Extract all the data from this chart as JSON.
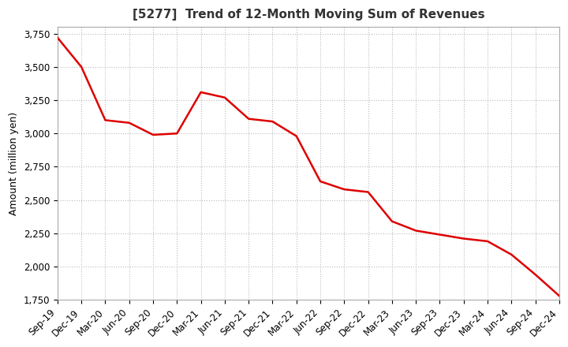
{
  "title": "[5277]  Trend of 12-Month Moving Sum of Revenues",
  "ylabel": "Amount (million yen)",
  "background_color": "#ffffff",
  "plot_bg_color": "#ffffff",
  "grid_color": "#bbbbbb",
  "line_color": "#dd0000",
  "ylim": [
    1750,
    3800
  ],
  "yticks": [
    1750,
    2000,
    2250,
    2500,
    2750,
    3000,
    3250,
    3500,
    3750
  ],
  "x_labels": [
    "Sep-19",
    "Dec-19",
    "Mar-20",
    "Jun-20",
    "Sep-20",
    "Dec-20",
    "Mar-21",
    "Jun-21",
    "Sep-21",
    "Dec-21",
    "Mar-22",
    "Jun-22",
    "Sep-22",
    "Dec-22",
    "Mar-23",
    "Jun-23",
    "Sep-23",
    "Dec-23",
    "Mar-24",
    "Jun-24",
    "Sep-24",
    "Dec-24"
  ],
  "values": [
    3720,
    3500,
    3100,
    3080,
    2990,
    3000,
    3310,
    3270,
    3110,
    3090,
    2980,
    2640,
    2580,
    2560,
    2340,
    2270,
    2240,
    2210,
    2190,
    2090,
    1940,
    1780
  ],
  "title_fontsize": 11,
  "ylabel_fontsize": 9,
  "tick_fontsize": 8.5
}
